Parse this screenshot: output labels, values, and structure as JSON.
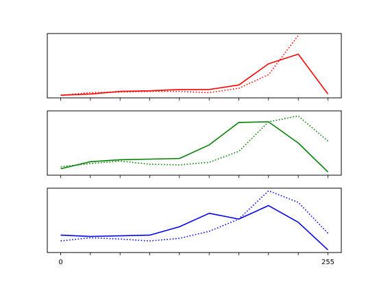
{
  "chart_data": [
    {
      "type": "line",
      "x": [
        0,
        28.3,
        56.7,
        85,
        113.3,
        141.7,
        170,
        198.3,
        226.7,
        255
      ],
      "xlim": [
        -12.75,
        267.75
      ],
      "ylim": [
        0,
        1
      ],
      "grid": false,
      "yticks": false,
      "color": "#ff0000",
      "series": [
        {
          "style": "solid",
          "values": [
            0.04,
            0.06,
            0.1,
            0.11,
            0.13,
            0.13,
            0.2,
            0.53,
            0.68,
            0.06
          ]
        },
        {
          "style": "dotted",
          "values": [
            0.04,
            0.08,
            0.09,
            0.1,
            0.1,
            0.08,
            0.15,
            0.36,
            0.97,
            null
          ]
        }
      ]
    },
    {
      "type": "line",
      "x": [
        0,
        28.3,
        56.7,
        85,
        113.3,
        141.7,
        170,
        198.3,
        226.7,
        255
      ],
      "xlim": [
        -12.75,
        267.75
      ],
      "ylim": [
        0,
        1
      ],
      "grid": false,
      "yticks": false,
      "color": "#008000",
      "series": [
        {
          "style": "solid",
          "values": [
            0.1,
            0.21,
            0.24,
            0.25,
            0.26,
            0.47,
            0.82,
            0.83,
            0.5,
            0.05
          ]
        },
        {
          "style": "dotted",
          "values": [
            0.13,
            0.18,
            0.22,
            0.17,
            0.16,
            0.2,
            0.37,
            0.83,
            0.92,
            0.53
          ]
        }
      ]
    },
    {
      "type": "line",
      "x": [
        0,
        28.3,
        56.7,
        85,
        113.3,
        141.7,
        170,
        198.3,
        226.7,
        255
      ],
      "xlim": [
        -12.75,
        267.75
      ],
      "ylim": [
        0,
        1
      ],
      "grid": false,
      "yticks": false,
      "color": "#0000ff",
      "series": [
        {
          "style": "solid",
          "values": [
            0.27,
            0.25,
            0.26,
            0.27,
            0.4,
            0.61,
            0.52,
            0.73,
            0.47,
            0.04
          ]
        },
        {
          "style": "dotted",
          "values": [
            0.18,
            0.23,
            0.21,
            0.18,
            0.22,
            0.33,
            0.52,
            0.96,
            0.78,
            0.3
          ]
        }
      ]
    }
  ],
  "x_axis": {
    "ticks": [
      0,
      28.3,
      56.7,
      85,
      113.3,
      141.7,
      170,
      198.3,
      226.7,
      255
    ],
    "tick_labels": [
      "0",
      "",
      "",
      "",
      "",
      "",
      "",
      "",
      "",
      "255"
    ]
  }
}
